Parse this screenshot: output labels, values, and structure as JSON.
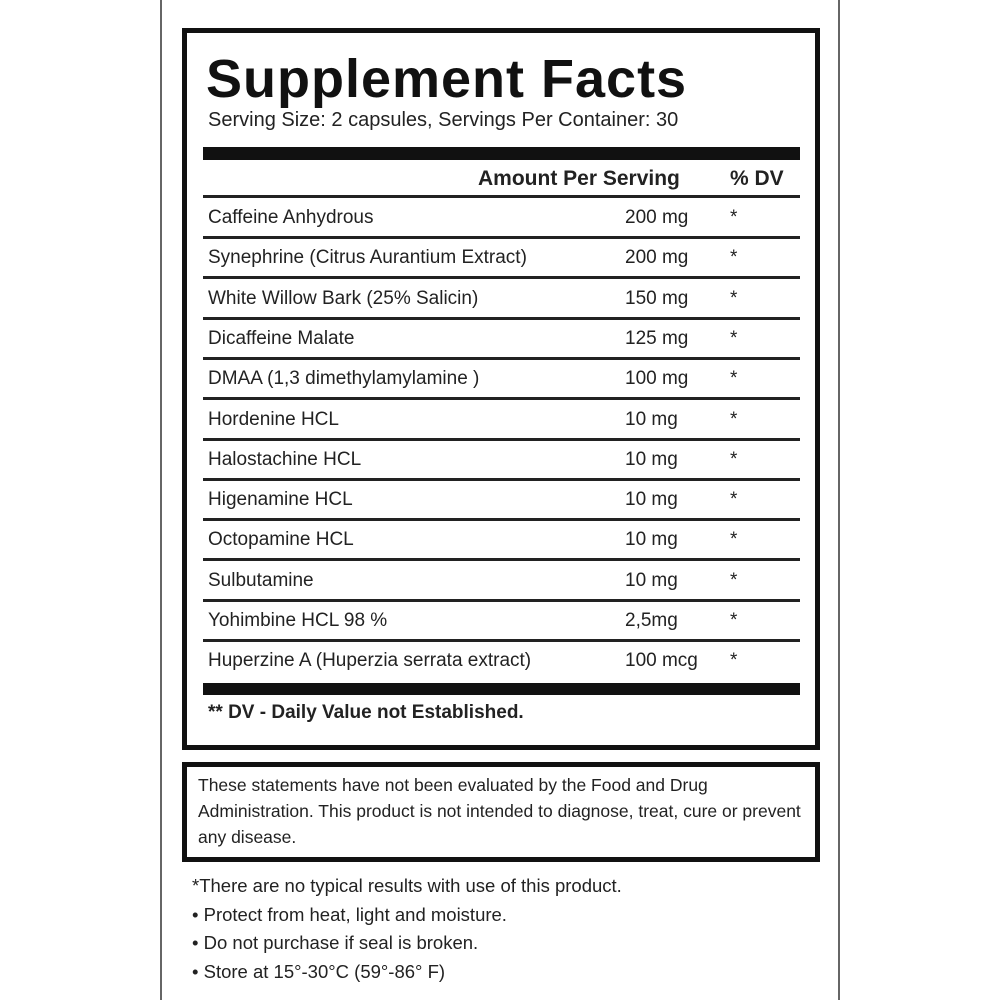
{
  "panel": {
    "title": "Supplement Facts",
    "serving": "Serving Size: 2 capsules, Servings Per Container: 30",
    "columns": {
      "amount": "Amount Per Serving",
      "dv": "% DV"
    },
    "rows": [
      [
        "Caffeine Anhydrous",
        "200 mg",
        "*"
      ],
      [
        "Synephrine (Citrus Aurantium Extract)",
        "200 mg",
        "*"
      ],
      [
        "White Willow Bark (25% Salicin)",
        "150 mg",
        "*"
      ],
      [
        "Dicaffeine Malate",
        "125 mg",
        "*"
      ],
      [
        "DMAA (1,3 dimethylamylamine )",
        "100 mg",
        "*"
      ],
      [
        "Hordenine HCL",
        "10 mg",
        "*"
      ],
      [
        "Halostachine HCL",
        "10 mg",
        "*"
      ],
      [
        "Higenamine HCL",
        "10 mg",
        "*"
      ],
      [
        "Octopamine HCL",
        "10 mg",
        "*"
      ],
      [
        "Sulbutamine",
        "10 mg",
        "*"
      ],
      [
        "Yohimbine  HCL 98 %",
        "2,5mg",
        "*"
      ],
      [
        "Huperzine A (Huperzia serrata extract)",
        "100 mcg",
        "*"
      ]
    ],
    "footnote": "** DV -  Daily Value not Established."
  },
  "disclaimer": "These statements have not been evaluated by the Food and Drug Administration. This product is not intended to diagnose, treat, cure or prevent any disease.",
  "notes": [
    "*There are no typical results with use of this product.",
    "• Protect from heat, light and moisture.",
    "• Do not purchase if seal is broken.",
    "• Store at 15°-30°C (59°-86° F)"
  ]
}
